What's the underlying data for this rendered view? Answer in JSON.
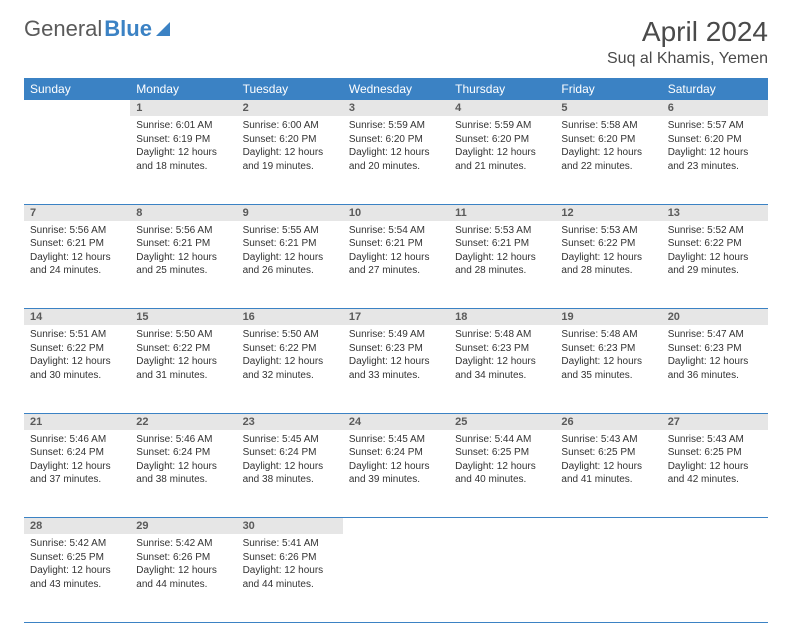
{
  "logo": {
    "text1": "General",
    "text2": "Blue"
  },
  "month_title": "April 2024",
  "location": "Suq al Khamis, Yemen",
  "colors": {
    "header_bg": "#3b82c4",
    "header_text": "#ffffff",
    "daynum_bg": "#e6e6e6",
    "daynum_text": "#5a5a5a",
    "border": "#3b82c4",
    "page_bg": "#ffffff",
    "body_text": "#333333"
  },
  "typography": {
    "month_title_fontsize": 28,
    "location_fontsize": 16,
    "weekday_fontsize": 12,
    "daynum_fontsize": 11,
    "cell_fontsize": 10
  },
  "weekdays": [
    "Sunday",
    "Monday",
    "Tuesday",
    "Wednesday",
    "Thursday",
    "Friday",
    "Saturday"
  ],
  "weeks": [
    [
      null,
      {
        "n": "1",
        "sunrise": "Sunrise: 6:01 AM",
        "sunset": "Sunset: 6:19 PM",
        "day1": "Daylight: 12 hours",
        "day2": "and 18 minutes."
      },
      {
        "n": "2",
        "sunrise": "Sunrise: 6:00 AM",
        "sunset": "Sunset: 6:20 PM",
        "day1": "Daylight: 12 hours",
        "day2": "and 19 minutes."
      },
      {
        "n": "3",
        "sunrise": "Sunrise: 5:59 AM",
        "sunset": "Sunset: 6:20 PM",
        "day1": "Daylight: 12 hours",
        "day2": "and 20 minutes."
      },
      {
        "n": "4",
        "sunrise": "Sunrise: 5:59 AM",
        "sunset": "Sunset: 6:20 PM",
        "day1": "Daylight: 12 hours",
        "day2": "and 21 minutes."
      },
      {
        "n": "5",
        "sunrise": "Sunrise: 5:58 AM",
        "sunset": "Sunset: 6:20 PM",
        "day1": "Daylight: 12 hours",
        "day2": "and 22 minutes."
      },
      {
        "n": "6",
        "sunrise": "Sunrise: 5:57 AM",
        "sunset": "Sunset: 6:20 PM",
        "day1": "Daylight: 12 hours",
        "day2": "and 23 minutes."
      }
    ],
    [
      {
        "n": "7",
        "sunrise": "Sunrise: 5:56 AM",
        "sunset": "Sunset: 6:21 PM",
        "day1": "Daylight: 12 hours",
        "day2": "and 24 minutes."
      },
      {
        "n": "8",
        "sunrise": "Sunrise: 5:56 AM",
        "sunset": "Sunset: 6:21 PM",
        "day1": "Daylight: 12 hours",
        "day2": "and 25 minutes."
      },
      {
        "n": "9",
        "sunrise": "Sunrise: 5:55 AM",
        "sunset": "Sunset: 6:21 PM",
        "day1": "Daylight: 12 hours",
        "day2": "and 26 minutes."
      },
      {
        "n": "10",
        "sunrise": "Sunrise: 5:54 AM",
        "sunset": "Sunset: 6:21 PM",
        "day1": "Daylight: 12 hours",
        "day2": "and 27 minutes."
      },
      {
        "n": "11",
        "sunrise": "Sunrise: 5:53 AM",
        "sunset": "Sunset: 6:21 PM",
        "day1": "Daylight: 12 hours",
        "day2": "and 28 minutes."
      },
      {
        "n": "12",
        "sunrise": "Sunrise: 5:53 AM",
        "sunset": "Sunset: 6:22 PM",
        "day1": "Daylight: 12 hours",
        "day2": "and 28 minutes."
      },
      {
        "n": "13",
        "sunrise": "Sunrise: 5:52 AM",
        "sunset": "Sunset: 6:22 PM",
        "day1": "Daylight: 12 hours",
        "day2": "and 29 minutes."
      }
    ],
    [
      {
        "n": "14",
        "sunrise": "Sunrise: 5:51 AM",
        "sunset": "Sunset: 6:22 PM",
        "day1": "Daylight: 12 hours",
        "day2": "and 30 minutes."
      },
      {
        "n": "15",
        "sunrise": "Sunrise: 5:50 AM",
        "sunset": "Sunset: 6:22 PM",
        "day1": "Daylight: 12 hours",
        "day2": "and 31 minutes."
      },
      {
        "n": "16",
        "sunrise": "Sunrise: 5:50 AM",
        "sunset": "Sunset: 6:22 PM",
        "day1": "Daylight: 12 hours",
        "day2": "and 32 minutes."
      },
      {
        "n": "17",
        "sunrise": "Sunrise: 5:49 AM",
        "sunset": "Sunset: 6:23 PM",
        "day1": "Daylight: 12 hours",
        "day2": "and 33 minutes."
      },
      {
        "n": "18",
        "sunrise": "Sunrise: 5:48 AM",
        "sunset": "Sunset: 6:23 PM",
        "day1": "Daylight: 12 hours",
        "day2": "and 34 minutes."
      },
      {
        "n": "19",
        "sunrise": "Sunrise: 5:48 AM",
        "sunset": "Sunset: 6:23 PM",
        "day1": "Daylight: 12 hours",
        "day2": "and 35 minutes."
      },
      {
        "n": "20",
        "sunrise": "Sunrise: 5:47 AM",
        "sunset": "Sunset: 6:23 PM",
        "day1": "Daylight: 12 hours",
        "day2": "and 36 minutes."
      }
    ],
    [
      {
        "n": "21",
        "sunrise": "Sunrise: 5:46 AM",
        "sunset": "Sunset: 6:24 PM",
        "day1": "Daylight: 12 hours",
        "day2": "and 37 minutes."
      },
      {
        "n": "22",
        "sunrise": "Sunrise: 5:46 AM",
        "sunset": "Sunset: 6:24 PM",
        "day1": "Daylight: 12 hours",
        "day2": "and 38 minutes."
      },
      {
        "n": "23",
        "sunrise": "Sunrise: 5:45 AM",
        "sunset": "Sunset: 6:24 PM",
        "day1": "Daylight: 12 hours",
        "day2": "and 38 minutes."
      },
      {
        "n": "24",
        "sunrise": "Sunrise: 5:45 AM",
        "sunset": "Sunset: 6:24 PM",
        "day1": "Daylight: 12 hours",
        "day2": "and 39 minutes."
      },
      {
        "n": "25",
        "sunrise": "Sunrise: 5:44 AM",
        "sunset": "Sunset: 6:25 PM",
        "day1": "Daylight: 12 hours",
        "day2": "and 40 minutes."
      },
      {
        "n": "26",
        "sunrise": "Sunrise: 5:43 AM",
        "sunset": "Sunset: 6:25 PM",
        "day1": "Daylight: 12 hours",
        "day2": "and 41 minutes."
      },
      {
        "n": "27",
        "sunrise": "Sunrise: 5:43 AM",
        "sunset": "Sunset: 6:25 PM",
        "day1": "Daylight: 12 hours",
        "day2": "and 42 minutes."
      }
    ],
    [
      {
        "n": "28",
        "sunrise": "Sunrise: 5:42 AM",
        "sunset": "Sunset: 6:25 PM",
        "day1": "Daylight: 12 hours",
        "day2": "and 43 minutes."
      },
      {
        "n": "29",
        "sunrise": "Sunrise: 5:42 AM",
        "sunset": "Sunset: 6:26 PM",
        "day1": "Daylight: 12 hours",
        "day2": "and 44 minutes."
      },
      {
        "n": "30",
        "sunrise": "Sunrise: 5:41 AM",
        "sunset": "Sunset: 6:26 PM",
        "day1": "Daylight: 12 hours",
        "day2": "and 44 minutes."
      },
      null,
      null,
      null,
      null
    ]
  ]
}
